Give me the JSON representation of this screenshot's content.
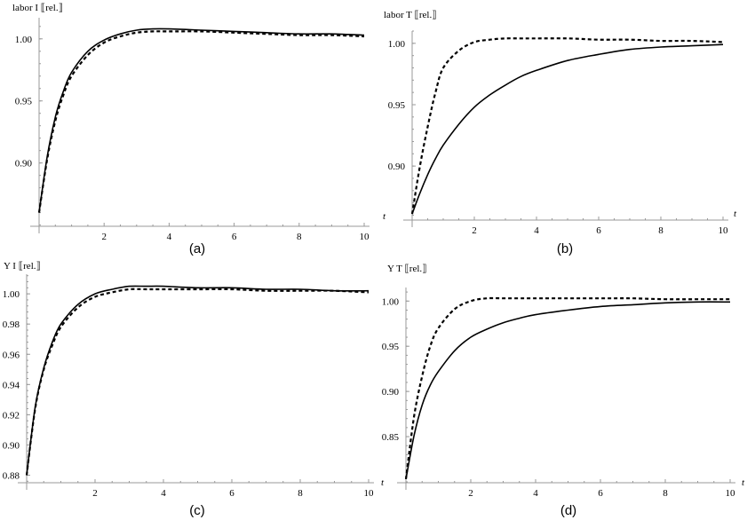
{
  "chart_data": [
    {
      "type": "line",
      "panel_label": "(a)",
      "ylabel": "labor  I ⟦rel.⟧",
      "xlabel": "t",
      "xlim": [
        0,
        10
      ],
      "ylim": [
        0.849,
        1.017
      ],
      "xticks": [
        "2",
        "4",
        "6",
        "8",
        "10"
      ],
      "yticks": [
        "0.90",
        "0.95",
        "1.00"
      ],
      "x": [
        0,
        0.25,
        0.5,
        0.75,
        1,
        1.5,
        2,
        2.5,
        3,
        3.5,
        4,
        5,
        6,
        7,
        8,
        9,
        10
      ],
      "series": [
        {
          "style": "solid",
          "values": [
            0.86,
            0.905,
            0.937,
            0.958,
            0.973,
            0.99,
            0.999,
            1.004,
            1.007,
            1.008,
            1.008,
            1.007,
            1.006,
            1.005,
            1.004,
            1.004,
            1.003
          ]
        },
        {
          "style": "dashed",
          "values": [
            0.86,
            0.903,
            0.934,
            0.955,
            0.97,
            0.987,
            0.997,
            1.002,
            1.005,
            1.006,
            1.006,
            1.006,
            1.005,
            1.004,
            1.003,
            1.003,
            1.002
          ]
        }
      ]
    },
    {
      "type": "line",
      "panel_label": "(b)",
      "ylabel": "labor  T ⟦rel.⟧",
      "xlabel": "t",
      "xlim": [
        0,
        10
      ],
      "ylim": [
        0.856,
        1.01
      ],
      "xticks": [
        "2",
        "4",
        "6",
        "8",
        "10"
      ],
      "yticks": [
        "0.90",
        "0.95",
        "1.00"
      ],
      "x": [
        0,
        0.25,
        0.5,
        0.75,
        1,
        1.5,
        2,
        2.5,
        3,
        3.5,
        4,
        5,
        6,
        7,
        8,
        9,
        10
      ],
      "series": [
        {
          "style": "solid",
          "values": [
            0.861,
            0.878,
            0.893,
            0.906,
            0.917,
            0.934,
            0.948,
            0.958,
            0.966,
            0.973,
            0.978,
            0.986,
            0.991,
            0.995,
            0.997,
            0.998,
            0.999
          ]
        },
        {
          "style": "dashed",
          "values": [
            0.861,
            0.9,
            0.932,
            0.96,
            0.98,
            0.994,
            1.001,
            1.003,
            1.004,
            1.004,
            1.004,
            1.004,
            1.003,
            1.003,
            1.002,
            1.002,
            1.001
          ]
        }
      ]
    },
    {
      "type": "line",
      "panel_label": "(c)",
      "ylabel": "Y I ⟦rel.⟧",
      "xlabel": "t",
      "xlim": [
        0,
        10
      ],
      "ylim": [
        0.875,
        1.013
      ],
      "xticks": [
        "2",
        "4",
        "6",
        "8",
        "10"
      ],
      "yticks": [
        "0.88",
        "0.90",
        "0.92",
        "0.94",
        "0.96",
        "0.98",
        "1.00"
      ],
      "x": [
        0,
        0.25,
        0.5,
        0.75,
        1,
        1.5,
        2,
        2.5,
        3,
        3.5,
        4,
        5,
        6,
        7,
        8,
        9,
        10
      ],
      "series": [
        {
          "style": "solid",
          "values": [
            0.88,
            0.925,
            0.951,
            0.968,
            0.98,
            0.993,
            1.0,
            1.003,
            1.005,
            1.005,
            1.005,
            1.004,
            1.004,
            1.003,
            1.003,
            1.002,
            1.002
          ]
        },
        {
          "style": "dashed",
          "values": [
            0.88,
            0.924,
            0.95,
            0.966,
            0.978,
            0.991,
            0.998,
            1.001,
            1.003,
            1.003,
            1.003,
            1.003,
            1.003,
            1.002,
            1.002,
            1.002,
            1.001
          ]
        }
      ]
    },
    {
      "type": "line",
      "panel_label": "(d)",
      "ylabel": "Y T ⟦rel.⟧",
      "xlabel": "t",
      "xlim": [
        0,
        10
      ],
      "ylim": [
        0.799,
        1.015
      ],
      "xticks": [
        "2",
        "4",
        "6",
        "8",
        "10"
      ],
      "yticks": [
        "0.85",
        "0.90",
        "0.95",
        "1.00"
      ],
      "x": [
        0,
        0.25,
        0.5,
        0.75,
        1,
        1.5,
        2,
        2.5,
        3,
        3.5,
        4,
        5,
        6,
        7,
        8,
        9,
        10
      ],
      "series": [
        {
          "style": "solid",
          "values": [
            0.803,
            0.851,
            0.885,
            0.907,
            0.922,
            0.945,
            0.96,
            0.969,
            0.976,
            0.981,
            0.985,
            0.99,
            0.994,
            0.996,
            0.998,
            0.999,
            0.999
          ]
        },
        {
          "style": "dashed",
          "values": [
            0.803,
            0.872,
            0.917,
            0.95,
            0.97,
            0.991,
            1.0,
            1.003,
            1.003,
            1.003,
            1.003,
            1.003,
            1.003,
            1.003,
            1.002,
            1.002,
            1.002
          ]
        }
      ]
    }
  ]
}
